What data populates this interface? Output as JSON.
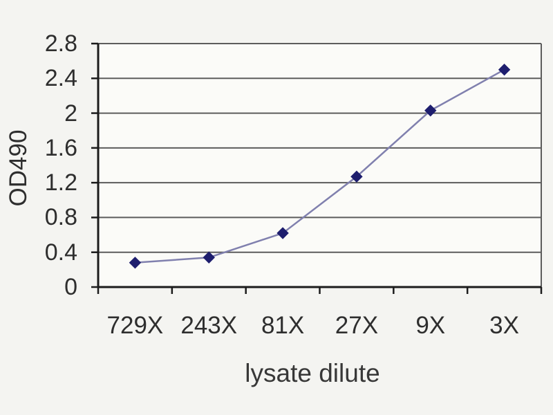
{
  "chart_data": {
    "type": "line",
    "title": "",
    "xlabel": "lysate dilute",
    "ylabel": "OD490",
    "categories": [
      "729X",
      "243X",
      "81X",
      "27X",
      "9X",
      "3X"
    ],
    "series": [
      {
        "name": "OD490",
        "values": [
          0.28,
          0.34,
          0.62,
          1.27,
          2.03,
          2.5
        ]
      }
    ],
    "ylim": [
      0,
      2.8
    ],
    "ytick_step": 0.4,
    "ytick_labels": [
      "0",
      "0.4",
      "0.8",
      "1.2",
      "1.6",
      "2",
      "2.4",
      "2.8"
    ],
    "grid": "horizontal",
    "legend": "none",
    "marker": "diamond",
    "colors": {
      "line": "#8080ae",
      "marker": "#1e1e6e",
      "grid": "#5c5c5c",
      "axis": "#1c1c1c",
      "text": "#2f2f2f",
      "background": "#f4f4f1",
      "plot_background": "#fbfbf8"
    }
  }
}
